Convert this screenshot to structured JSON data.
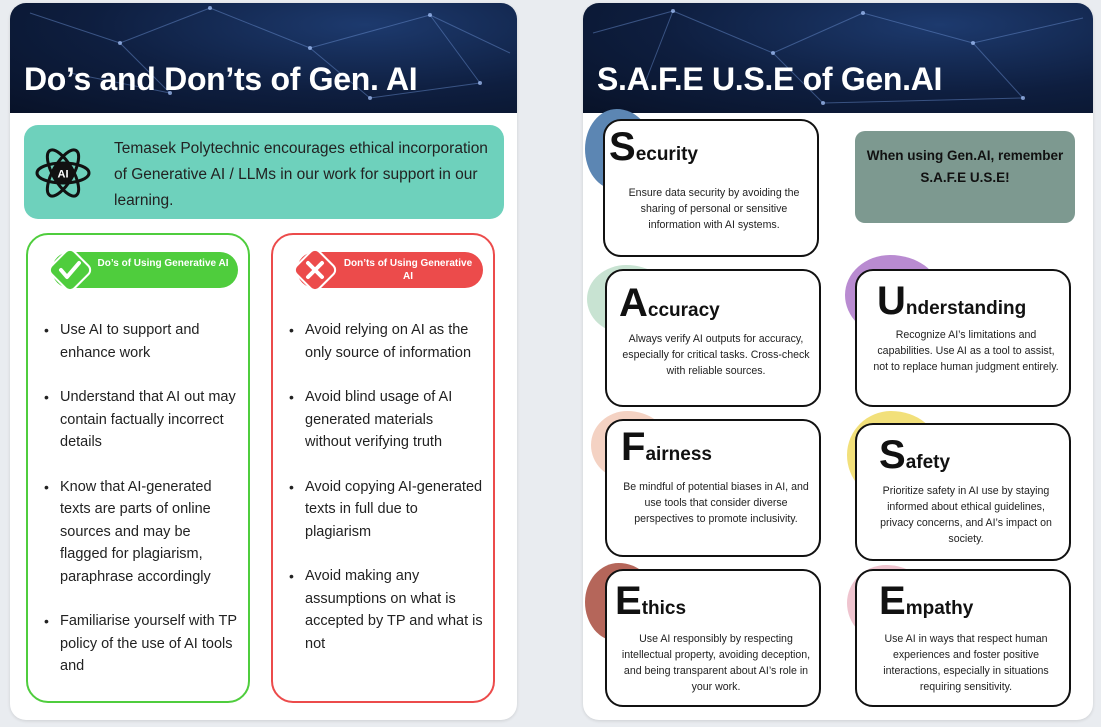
{
  "left_panel": {
    "title": "Do’s and Don’ts of Gen. AI",
    "ai_icon_label": "AI",
    "intro": "Temasek Polytechnic encourages ethical incorporation of Generative AI / LLMs in our work for support in our learning.",
    "dos": {
      "label": "Do’s of Using Generative AI",
      "color": "#4fcd3d",
      "items": [
        "Use AI to support and enhance work",
        "Understand that AI out may contain factually incorrect details",
        "Know that AI-generated texts are parts of online sources and may be flagged for plagiarism, paraphrase accordingly",
        "Familiarise yourself with TP policy of the use of AI tools and"
      ]
    },
    "donts": {
      "label": "Don’ts of Using Generative AI",
      "color": "#ec4b4b",
      "items": [
        "Avoid relying on AI as the only source of information",
        "Avoid blind usage of AI generated materials without verifying truth",
        "Avoid copying AI-generated texts in full due to plagiarism",
        "Avoid making any assumptions on what is accepted by TP and what is not"
      ]
    }
  },
  "right_panel": {
    "title": "S.A.F.E U.S.E of Gen.AI",
    "reminder": "When using Gen.AI, remember S.A.F.E U.S.E!",
    "reminder_color": "#7d9990",
    "items": [
      {
        "letter": "S",
        "rest": "ecurity",
        "color": "#5c86b3",
        "desc": "Ensure data security by avoiding the sharing of personal or sensitive information with AI systems."
      },
      {
        "letter": "A",
        "rest": "ccuracy",
        "color": "#c8e3d2",
        "desc": "Always verify AI outputs for accuracy, especially for critical tasks. Cross-check with reliable sources."
      },
      {
        "letter": "U",
        "rest": "nderstanding",
        "color": "#b98bd1",
        "desc": "Recognize AI’s limitations and capabilities. Use AI as a tool to assist, not to replace human judgment entirely."
      },
      {
        "letter": "F",
        "rest": "airness",
        "color": "#f4d2c3",
        "desc": "Be mindful of potential biases in AI, and use tools that consider diverse perspectives to promote inclusivity."
      },
      {
        "letter": "S",
        "rest": "afety",
        "color": "#f2e07a",
        "desc": "Prioritize safety in AI use by staying informed about ethical guidelines, privacy concerns, and AI’s impact on society."
      },
      {
        "letter": "E",
        "rest": "thics",
        "color": "#b5665a",
        "desc": "Use AI responsibly by respecting intellectual property, avoiding deception, and being transparent about AI’s role in your work."
      },
      {
        "letter": "E",
        "rest": "mpathy",
        "color": "#efc4cf",
        "desc": "Use AI in ways that respect human experiences and foster positive interactions, especially in situations requiring sensitivity."
      }
    ]
  }
}
